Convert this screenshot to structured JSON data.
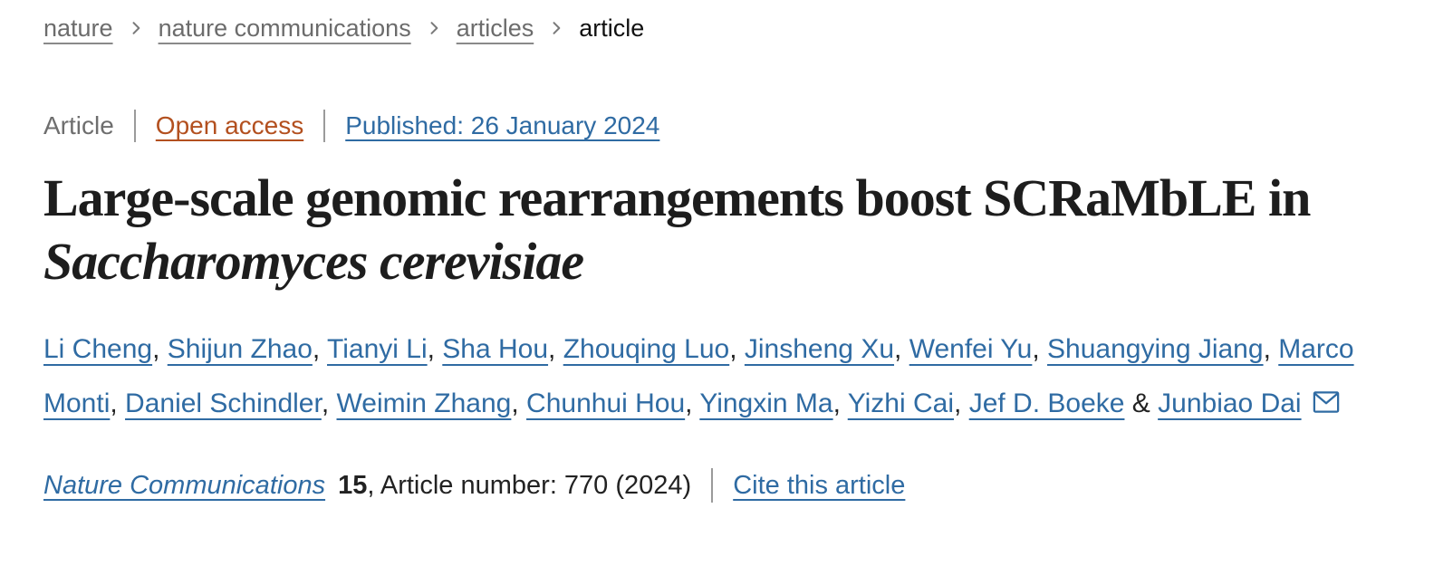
{
  "breadcrumb": {
    "items": [
      "nature",
      "nature communications",
      "articles"
    ],
    "current": "article"
  },
  "meta": {
    "type_label": "Article",
    "access_label": "Open access",
    "published_label": "Published: 26 January 2024"
  },
  "title": {
    "text": "Large-scale genomic rearrangements boost SCRaMbLE in ",
    "italic_text": "Saccharomyces cerevisiae"
  },
  "authors": {
    "names": [
      "Li Cheng",
      "Shijun Zhao",
      "Tianyi Li",
      "Sha Hou",
      "Zhouqing Luo",
      "Jinsheng Xu",
      "Wenfei Yu",
      "Shuangying Jiang",
      "Marco Monti",
      "Daniel Schindler",
      "Weimin Zhang",
      "Chunhui Hou",
      "Yingxin Ma",
      "Yizhi Cai",
      "Jef D. Boeke",
      "Junbiao Dai"
    ],
    "separator": ", ",
    "last_separator": " & "
  },
  "citation": {
    "journal": "Nature Communications",
    "volume": "15",
    "details": ", Article number: 770 (2024)",
    "cite_label": "Cite this article"
  },
  "icons": {
    "breadcrumb_separator": "chevron-right-icon",
    "correspondence": "email-icon"
  },
  "colors": {
    "link_blue": "#2f6ba3",
    "open_access_orange": "#b3501f",
    "breadcrumb_gray": "#6c6c6c",
    "text_dark": "#1d1d1d",
    "divider_gray": "#9b9b9b"
  }
}
